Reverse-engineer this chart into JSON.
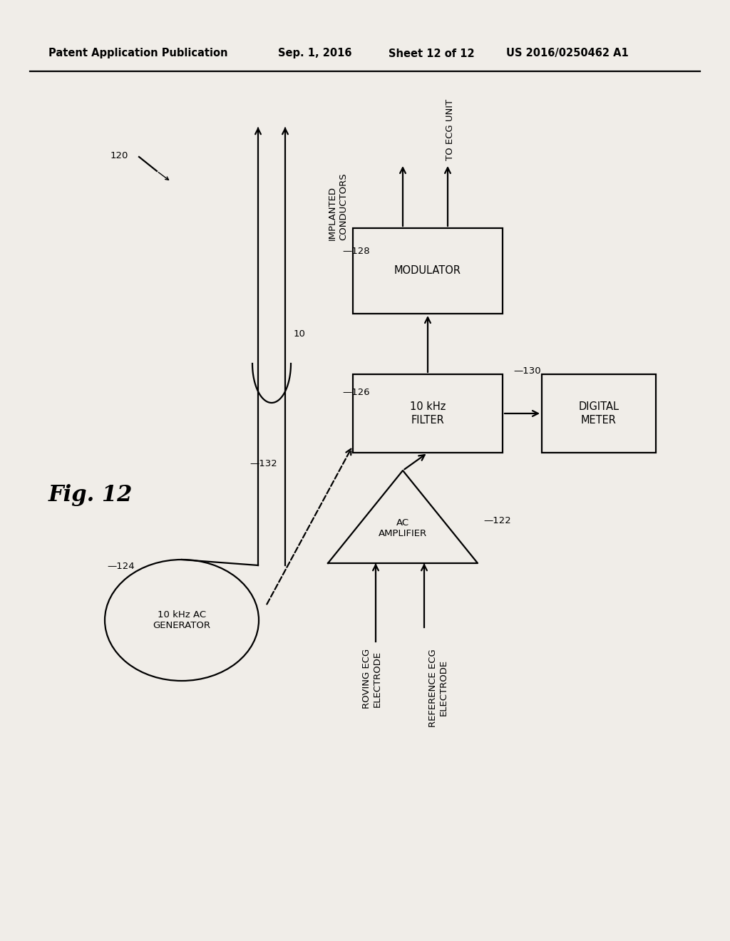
{
  "bg_color": "#f0ede8",
  "header_left": "Patent Application Publication",
  "header_mid1": "Sep. 1, 2016",
  "header_mid2": "Sheet 12 of 12",
  "header_right": "US 2016/0250462 A1",
  "fig_label": "Fig. 12",
  "mod_label": "MODULATOR",
  "filter_label": "10 kHz\nFILTER",
  "dm_label": "DIGITAL\nMETER",
  "amp_label": "AC\nAMPLIFIER",
  "gen_label": "10 kHz AC\nGENERATOR",
  "impl_label": "IMPLANTED\nCONDUCTORS",
  "ecg_unit_label": "TO ECG UNIT",
  "roving_label": "ROVING ECG\nELECTRODE",
  "ref_ecg_label": "REFERENCE ECG\nELECTRODE",
  "r10": "10",
  "r120": "120",
  "r122": "122",
  "r124": "124",
  "r126": "126",
  "r128": "128",
  "r130": "130",
  "r132": "132"
}
